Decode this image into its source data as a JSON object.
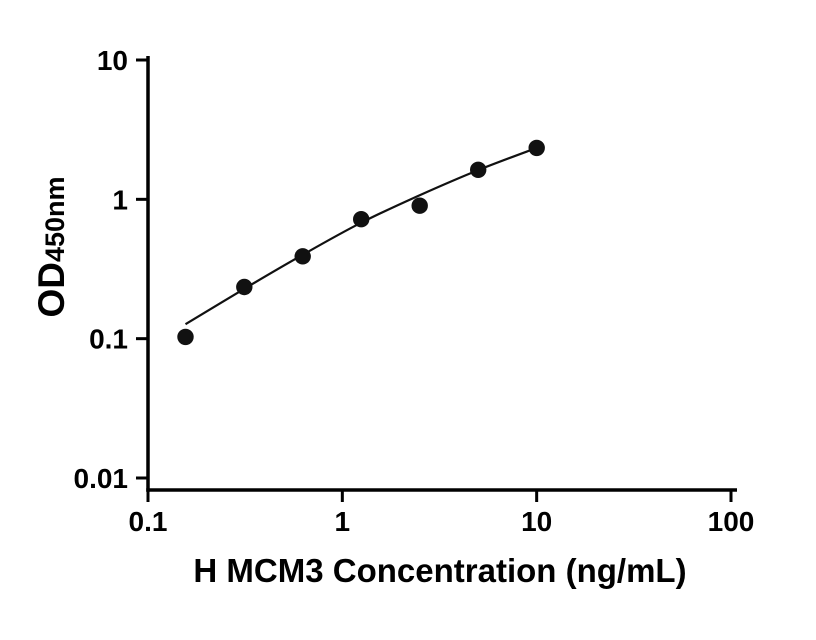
{
  "figure": {
    "background": "#ffffff"
  },
  "chart_data": {
    "type": "scatter",
    "title": "",
    "xlabel": "H MCM3 Concentration (ng/mL)",
    "ylabel": "OD450nm",
    "ylabel_main": "OD",
    "ylabel_sub": "450nm",
    "x_scale": "log",
    "y_scale": "log",
    "xlim": [
      0.1,
      100
    ],
    "ylim": [
      0.01,
      10
    ],
    "grid": false,
    "legend": false,
    "axis_color": "#000000",
    "x_ticks": [
      {
        "value": 0.1,
        "label": "0.1"
      },
      {
        "value": 1,
        "label": "1"
      },
      {
        "value": 10,
        "label": "10"
      },
      {
        "value": 100,
        "label": "100"
      }
    ],
    "y_ticks": [
      {
        "value": 0.01,
        "label": "0.01"
      },
      {
        "value": 0.1,
        "label": "0.1"
      },
      {
        "value": 1,
        "label": "1"
      },
      {
        "value": 10,
        "label": "10"
      }
    ],
    "series": [
      {
        "marker": "filled-circle",
        "marker_color": "#111111",
        "points": [
          {
            "x": 0.156,
            "y": 0.103
          },
          {
            "x": 0.313,
            "y": 0.235
          },
          {
            "x": 0.625,
            "y": 0.39
          },
          {
            "x": 1.25,
            "y": 0.72
          },
          {
            "x": 2.5,
            "y": 0.9
          },
          {
            "x": 5,
            "y": 1.63
          },
          {
            "x": 10,
            "y": 2.34
          }
        ]
      }
    ],
    "fit_curve": [
      {
        "x": 0.156,
        "y": 0.127
      },
      {
        "x": 0.313,
        "y": 0.228
      },
      {
        "x": 0.625,
        "y": 0.4
      },
      {
        "x": 1.25,
        "y": 0.68
      },
      {
        "x": 2.5,
        "y": 1.07
      },
      {
        "x": 5,
        "y": 1.62
      },
      {
        "x": 10,
        "y": 2.34
      }
    ]
  }
}
